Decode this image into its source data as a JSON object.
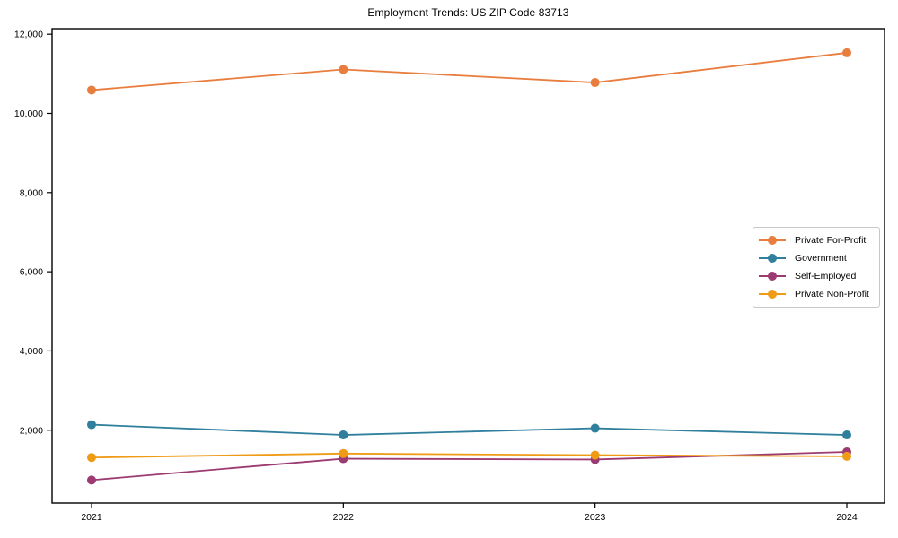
{
  "page": {
    "background_color": "#ffffff",
    "text_color": "#000000",
    "axis_color": "#000000",
    "legend_border_color": "#c9c9c9"
  },
  "chart_data": {
    "type": "line",
    "title": "Employment Trends: US ZIP Code 83713",
    "xlabel": "",
    "ylabel": "",
    "x": [
      2021,
      2022,
      2023,
      2024
    ],
    "x_tick_labels": [
      "2021",
      "2022",
      "2023",
      "2024"
    ],
    "yticks": [
      2000,
      4000,
      6000,
      8000,
      10000,
      12000
    ],
    "ytick_labels": [
      "2,000",
      "4,000",
      "6,000",
      "8,000",
      "10,000",
      "12,000"
    ],
    "ylim": [
      160,
      12140
    ],
    "grid": false,
    "legend_position": "center-right",
    "marker": "circle",
    "series": [
      {
        "name": "Private For-Profit",
        "color": "#e87d3e",
        "values": [
          10590,
          11110,
          10780,
          11530
        ]
      },
      {
        "name": "Government",
        "color": "#2f7f9d",
        "values": [
          2140,
          1880,
          2050,
          1880
        ]
      },
      {
        "name": "Self-Employed",
        "color": "#9c3a72",
        "values": [
          740,
          1280,
          1260,
          1450
        ]
      },
      {
        "name": "Private Non-Profit",
        "color": "#ef9b16",
        "values": [
          1310,
          1410,
          1370,
          1340
        ]
      }
    ]
  }
}
